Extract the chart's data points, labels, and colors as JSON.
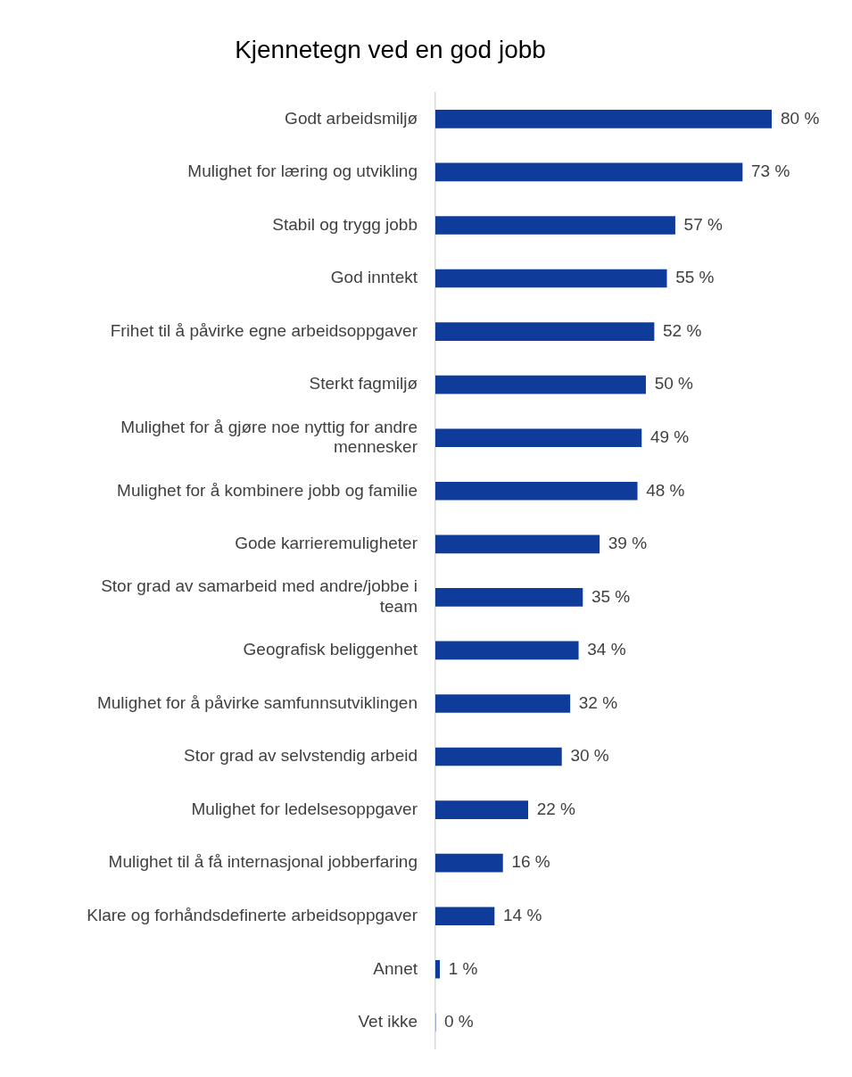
{
  "chart_data": {
    "type": "bar",
    "orientation": "horizontal",
    "title": "Kjennetegn ved en god jobb",
    "categories": [
      "Godt arbeidsmiljø",
      "Mulighet for læring og utvikling",
      "Stabil og trygg jobb",
      "God inntekt",
      "Frihet til å påvirke egne arbeidsoppgaver",
      "Sterkt fagmiljø",
      "Mulighet for å gjøre noe nyttig for andre mennesker",
      "Mulighet for å kombinere jobb og familie",
      "Gode karrieremuligheter",
      "Stor grad av samarbeid med andre/jobbe i team",
      "Geografisk beliggenhet",
      "Mulighet for å påvirke samfunnsutviklingen",
      "Stor grad av selvstendig arbeid",
      "Mulighet for ledelsesoppgaver",
      "Mulighet til å få internasjonal jobberfaring",
      "Klare og forhåndsdefinerte arbeidsoppgaver",
      "Annet",
      "Vet ikke"
    ],
    "values": [
      80,
      73,
      57,
      55,
      52,
      50,
      49,
      48,
      39,
      35,
      34,
      32,
      30,
      22,
      16,
      14,
      1,
      0
    ],
    "value_labels": [
      "80 %",
      "73 %",
      "57 %",
      "55 %",
      "52 %",
      "50 %",
      "49 %",
      "48 %",
      "39 %",
      "35 %",
      "34 %",
      "32 %",
      "30 %",
      "22 %",
      "16 %",
      "14 %",
      "1 %",
      "0 %"
    ],
    "color": "#0f3c9b"
  }
}
